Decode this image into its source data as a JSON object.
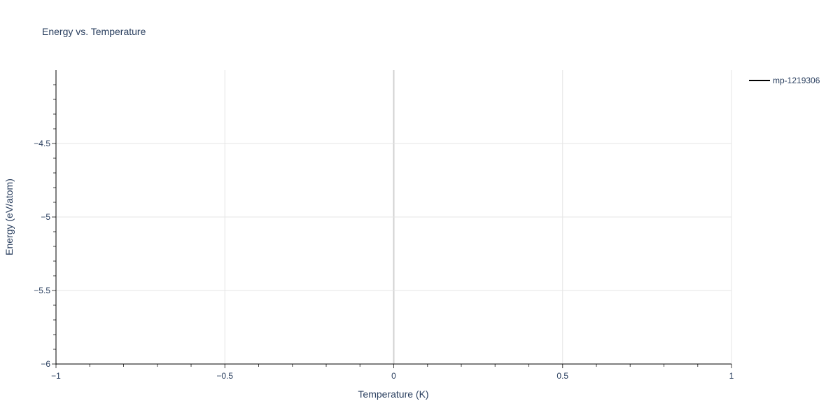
{
  "chart_data": {
    "type": "line",
    "title": "Energy vs. Temperature",
    "xlabel": "Temperature (K)",
    "ylabel": "Energy (eV/atom)",
    "xlim": [
      -1,
      1
    ],
    "ylim": [
      -6,
      -4
    ],
    "x_ticks": [
      -1,
      -0.5,
      0,
      0.5,
      1
    ],
    "x_tick_labels": [
      "−1",
      "−0.5",
      "0",
      "0.5",
      "1"
    ],
    "y_ticks": [
      -6,
      -5.5,
      -5,
      -4.5
    ],
    "y_tick_labels": [
      "−6",
      "−5.5",
      "−5",
      "−4.5"
    ],
    "grid": true,
    "legend_placement": "top-right",
    "series": [
      {
        "name": "mp-1219306",
        "color": "#000000",
        "x": [],
        "y": []
      }
    ]
  }
}
